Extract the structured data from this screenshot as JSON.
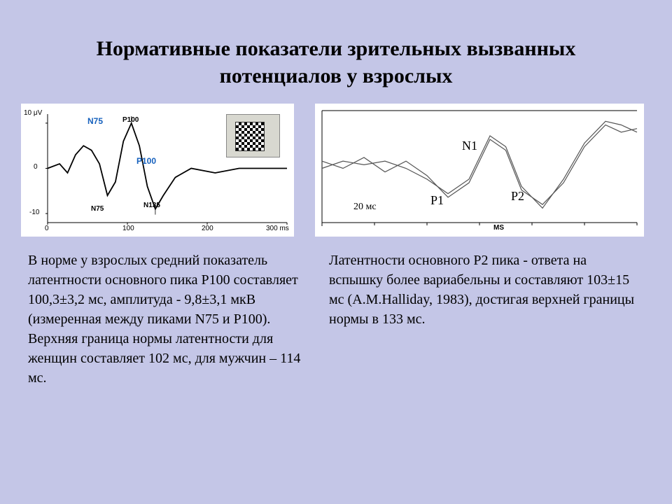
{
  "title": "Нормативные показатели зрительных вызванных потенциалов у взрослых",
  "left_chart": {
    "type": "line",
    "y_label_top": "10 μV",
    "y_ticks": [
      "0",
      "-10"
    ],
    "x_ticks": [
      "0",
      "100",
      "200",
      "300 ms"
    ],
    "labels": {
      "n75_top": "N75",
      "p100_top": "P100",
      "n75_bottom": "N75",
      "p100_bottom": "P100",
      "n135": "N135"
    },
    "n75_color": "#1560bd",
    "p100_color": "#1560bd",
    "line_color": "#000000",
    "axis_color": "#000000",
    "background": "#ffffff",
    "x_range": [
      0,
      300
    ],
    "y_range": [
      -12,
      12
    ],
    "points": [
      [
        0,
        0
      ],
      [
        15,
        1
      ],
      [
        25,
        -1
      ],
      [
        35,
        3
      ],
      [
        45,
        5
      ],
      [
        55,
        4
      ],
      [
        65,
        1
      ],
      [
        75,
        -6
      ],
      [
        85,
        -3
      ],
      [
        95,
        6
      ],
      [
        105,
        10
      ],
      [
        115,
        5
      ],
      [
        125,
        -4
      ],
      [
        135,
        -9
      ],
      [
        145,
        -6
      ],
      [
        160,
        -2
      ],
      [
        180,
        0
      ],
      [
        210,
        -1
      ],
      [
        240,
        0
      ],
      [
        270,
        0
      ],
      [
        300,
        0
      ]
    ]
  },
  "right_chart": {
    "type": "line",
    "labels": {
      "n1": "N1",
      "p1": "P1",
      "p2": "P2",
      "scale": "20 мс",
      "xaxis": "MS"
    },
    "line_color": "#555555",
    "axis_color": "#000000",
    "background": "#ffffff",
    "x_range": [
      0,
      300
    ],
    "points_a": [
      [
        0,
        2
      ],
      [
        20,
        0
      ],
      [
        40,
        3
      ],
      [
        60,
        -1
      ],
      [
        80,
        2
      ],
      [
        100,
        -2
      ],
      [
        120,
        -8
      ],
      [
        140,
        -4
      ],
      [
        160,
        8
      ],
      [
        175,
        5
      ],
      [
        190,
        -6
      ],
      [
        210,
        -10
      ],
      [
        230,
        -4
      ],
      [
        250,
        6
      ],
      [
        270,
        12
      ],
      [
        285,
        10
      ],
      [
        300,
        11
      ]
    ],
    "points_b": [
      [
        0,
        0
      ],
      [
        20,
        2
      ],
      [
        40,
        1
      ],
      [
        60,
        2
      ],
      [
        80,
        0
      ],
      [
        100,
        -3
      ],
      [
        120,
        -7
      ],
      [
        140,
        -3
      ],
      [
        160,
        9
      ],
      [
        175,
        6
      ],
      [
        190,
        -5
      ],
      [
        210,
        -11
      ],
      [
        230,
        -3
      ],
      [
        250,
        7
      ],
      [
        270,
        13
      ],
      [
        285,
        12
      ],
      [
        300,
        10
      ]
    ]
  },
  "text_left": "В норме у взрослых средний показатель латентности основного пика Р100 составляет 100,3±3,2 мс, амплитуда - 9,8±3,1 мкВ (измеренная между пиками N75 и Р100).\nВерхняя граница нормы латентности для женщин составляет 102 мс, для мужчин – 114 мс.",
  "text_right": "Латентности основного Р2 пика - ответа на вспышку более вариабельны и составляют 103±15 мс (A.M.Halliday, 1983), достигая верхней границы нормы в 133 мс."
}
